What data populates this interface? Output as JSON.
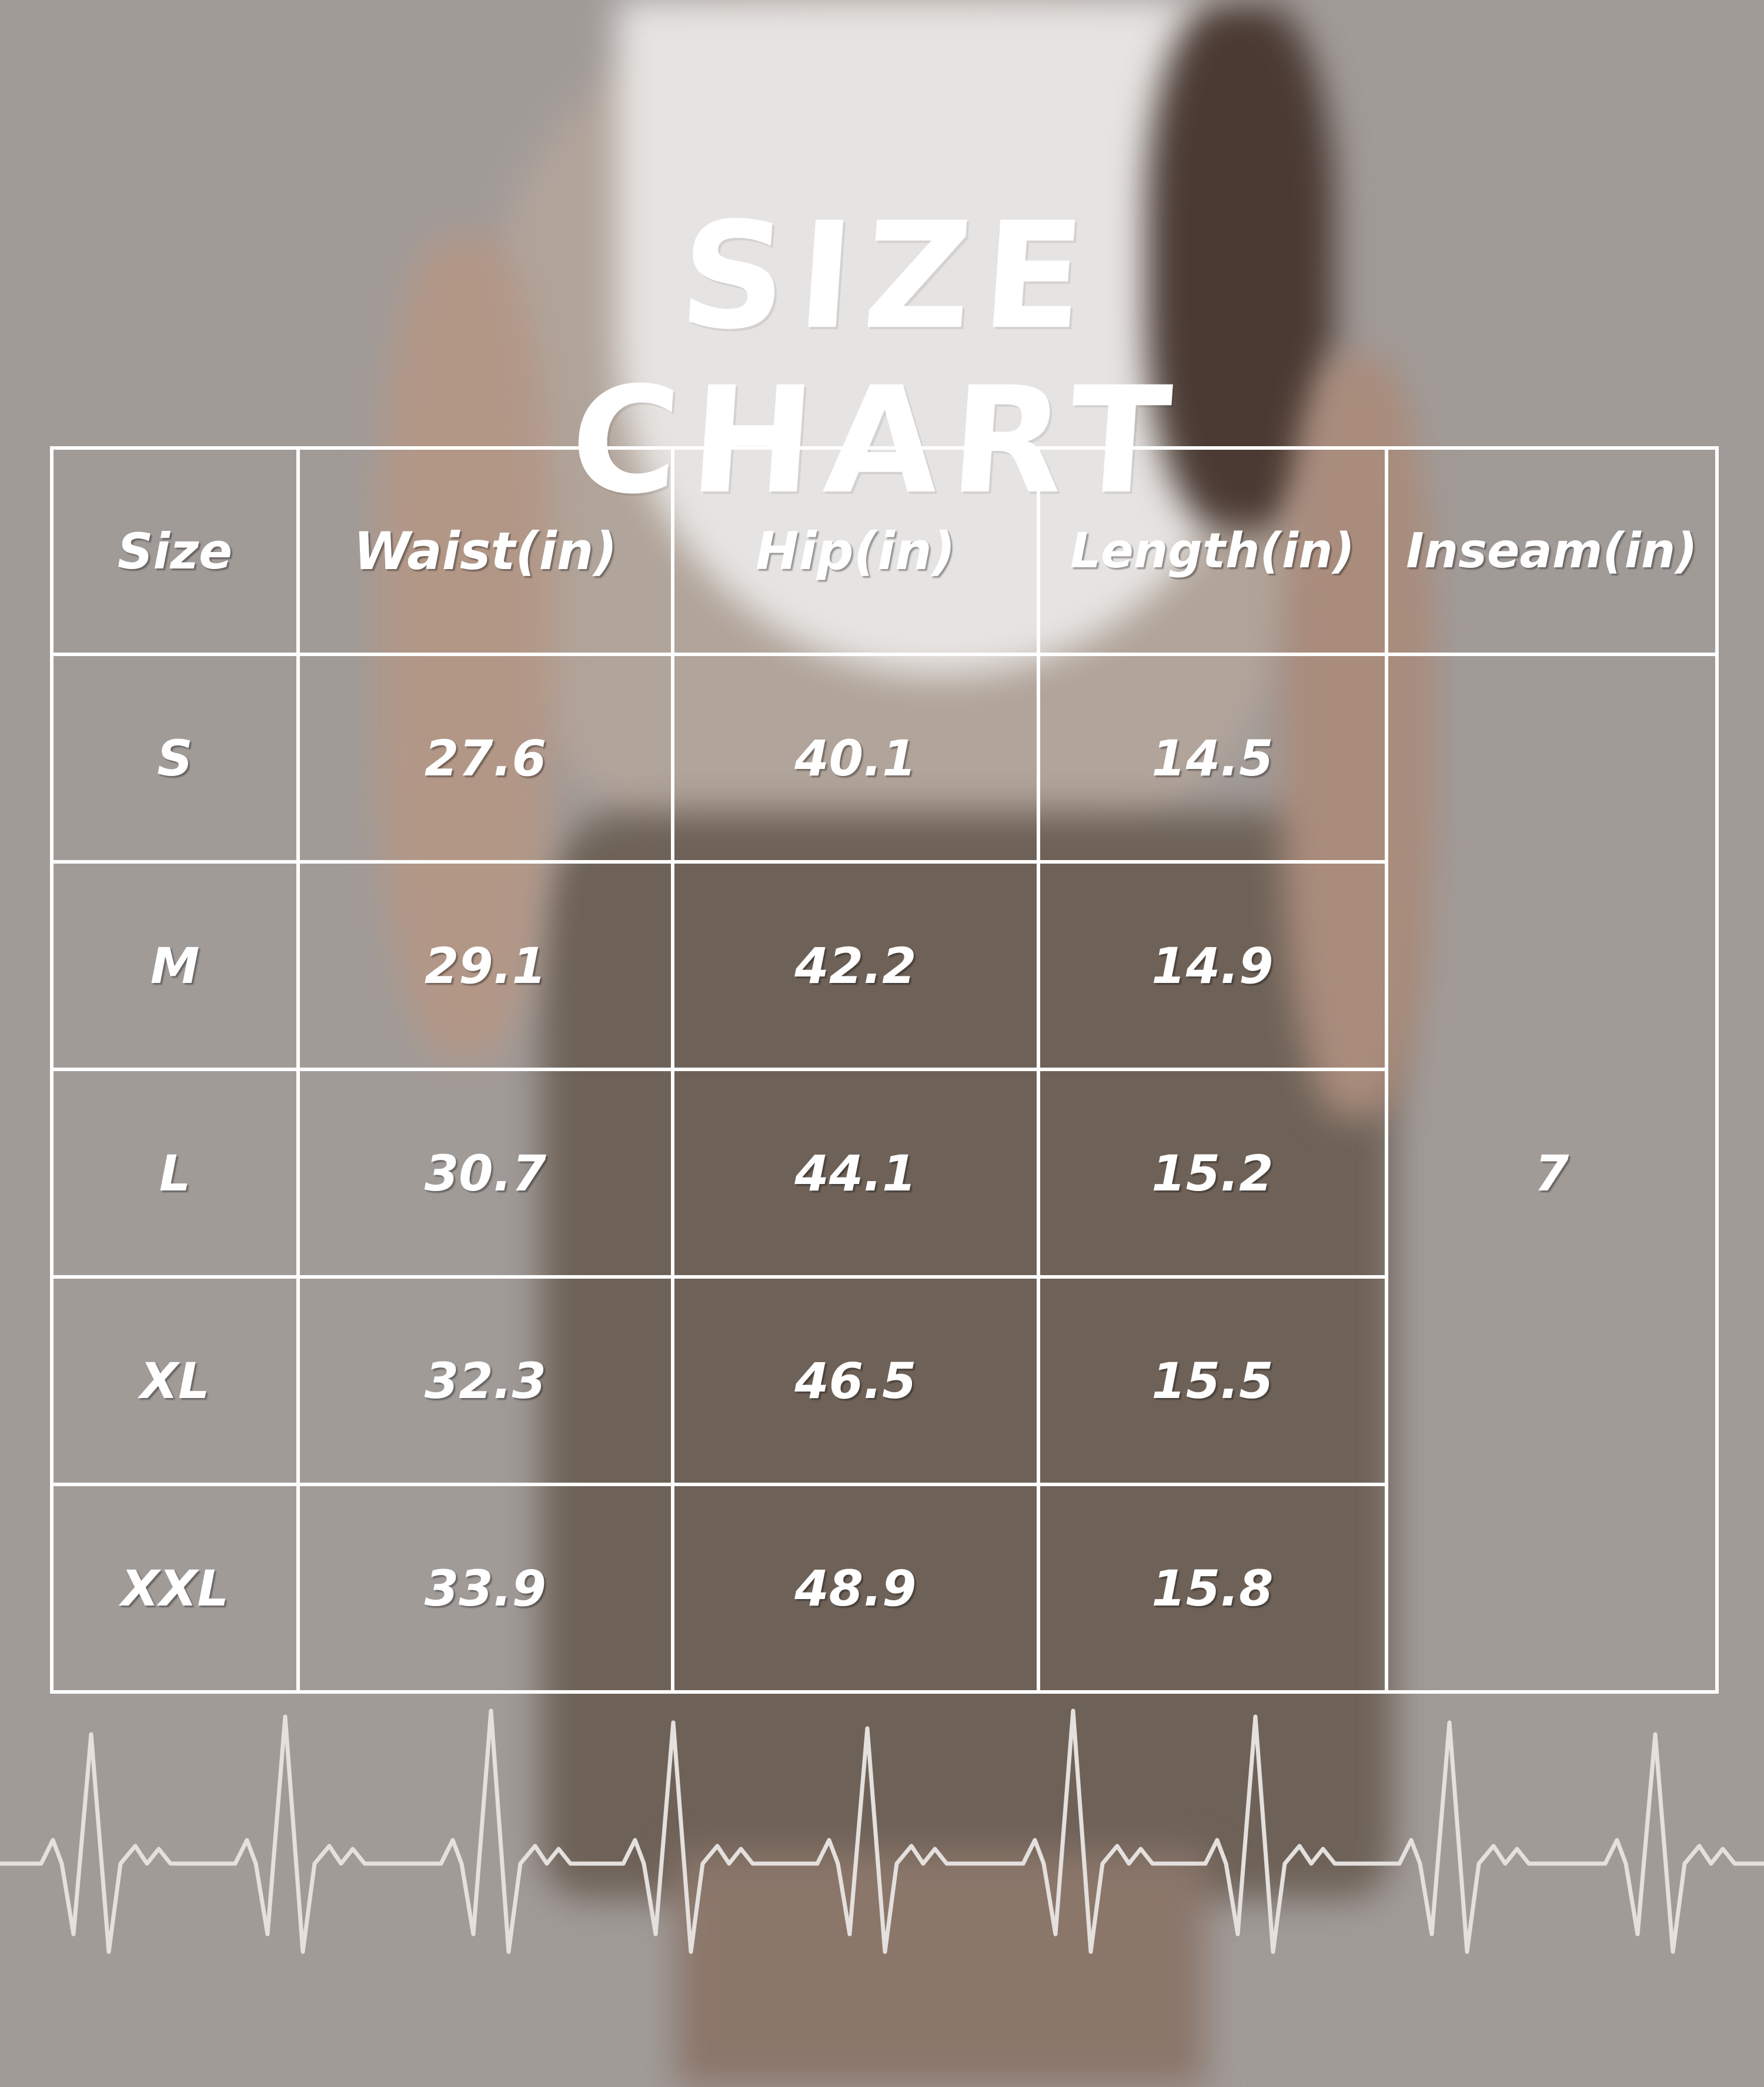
{
  "title": "SIZE CHART",
  "table": {
    "headers": [
      "Size",
      "Waist(in)",
      "Hip(in)",
      "Length(in)",
      "Inseam(in)"
    ],
    "rows": [
      {
        "size": "S",
        "waist": "27.6",
        "hip": "40.1",
        "length": "14.5"
      },
      {
        "size": "M",
        "waist": "29.1",
        "hip": "42.2",
        "length": "14.9"
      },
      {
        "size": "L",
        "waist": "30.7",
        "hip": "44.1",
        "length": "15.2"
      },
      {
        "size": "XL",
        "waist": "32.3",
        "hip": "46.5",
        "length": "15.5"
      },
      {
        "size": "XXL",
        "waist": "33.9",
        "hip": "48.9",
        "length": "15.8"
      }
    ],
    "inseam_all": "7"
  },
  "colors": {
    "background": "#a19b98",
    "text": "#ffffff",
    "shorts": "#6e6258",
    "top": "#e6e4e2"
  }
}
